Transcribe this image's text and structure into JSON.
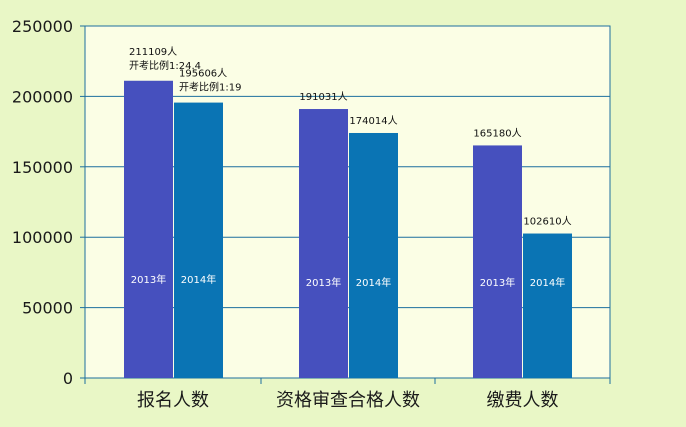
{
  "chart_data": {
    "type": "bar",
    "title": "",
    "xlabel": "",
    "ylabel": "",
    "ylim": [
      0,
      250000
    ],
    "yticks": [
      "0",
      "50000",
      "100000",
      "150000",
      "200000",
      "250000"
    ],
    "grid": true,
    "categories": [
      "报名人数",
      "资格审查合格人数",
      "缴费人数"
    ],
    "series": [
      {
        "values": [
          211109,
          191031,
          165180
        ],
        "bar_labels": [
          "2013年",
          "2013年",
          "2013年"
        ],
        "value_labels": [
          "211109人",
          "191031人",
          "165180人"
        ],
        "notes": [
          "开考比例1:24.4",
          "",
          ""
        ],
        "color": "#4650be"
      },
      {
        "values": [
          195606,
          174014,
          102610
        ],
        "bar_labels": [
          "2014年",
          "2014年",
          "2014年"
        ],
        "value_labels": [
          "195606人",
          "174014人",
          "102610人"
        ],
        "notes": [
          "开考比例1:19",
          "",
          ""
        ],
        "color": "#0a74b4"
      }
    ],
    "colors": {
      "background": "#e9f7c6",
      "plot_background": "#fbfee5",
      "axis": "#1d6f9e",
      "grid": "#1d6f9e"
    }
  }
}
